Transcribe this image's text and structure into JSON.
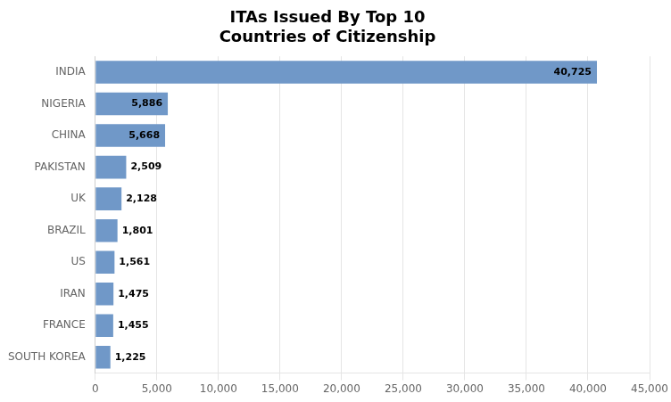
{
  "chart_data": {
    "type": "bar",
    "orientation": "horizontal",
    "title": "ITAs Issued By Top 10\nCountries of Citizenship",
    "categories": [
      "INDIA",
      "NIGERIA",
      "CHINA",
      "PAKISTAN",
      "UK",
      "BRAZIL",
      "US",
      "IRAN",
      "FRANCE",
      "SOUTH KOREA"
    ],
    "values": [
      40725,
      5886,
      5668,
      2509,
      2128,
      1801,
      1561,
      1475,
      1455,
      1225
    ],
    "value_labels": [
      "40,725",
      "5,886",
      "5,668",
      "2,509",
      "2,128",
      "1,801",
      "1,561",
      "1,475",
      "1,455",
      "1,225"
    ],
    "data_labels": true,
    "color": "#7098C8",
    "xlim": [
      0,
      45000
    ],
    "xticks": [
      0,
      {
        "value": 5000,
        "label": "5,000"
      },
      {
        "value": 10000,
        "label": "10,000"
      },
      {
        "value": 15000,
        "label": "15,000"
      },
      {
        "value": 20000,
        "label": "20,000"
      },
      {
        "value": 25000,
        "label": "25,000"
      },
      {
        "value": 30000,
        "label": "30,000"
      },
      {
        "value": 35000,
        "label": "35,000"
      },
      {
        "value": 40000,
        "label": "40,000"
      },
      {
        "value": 45000,
        "label": "45,000"
      }
    ],
    "grid": true
  }
}
